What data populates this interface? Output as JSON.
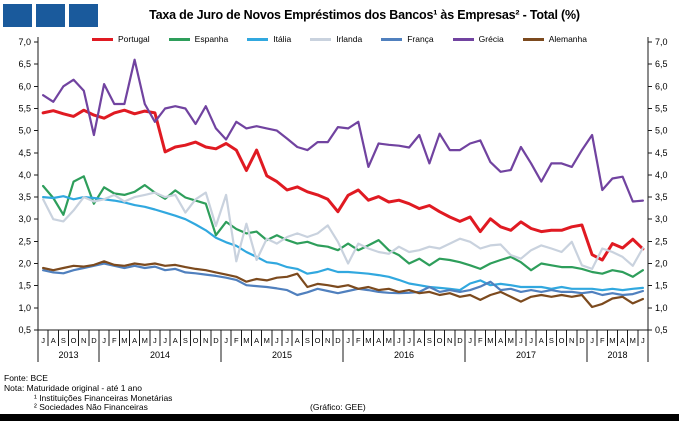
{
  "header": {
    "title": "Taxa de Juro de Novos Empréstimos dos Bancos¹ às Empresas² - Total (%)",
    "logo_color": "#1A5A9C",
    "logo_square_count": 3
  },
  "chart_data": {
    "type": "line",
    "title": "Taxa de Juro de Novos Empréstimos dos Bancos¹ às Empresas² - Total (%)",
    "unit": "%",
    "grid": "off",
    "legend_position": "top",
    "y_axis": {
      "min": 0.5,
      "max": 7.0,
      "step": 0.5,
      "sides": "both",
      "tick_format": "decimal-comma"
    },
    "x_axis": {
      "month_labels": [
        "J",
        "A",
        "S",
        "O",
        "N",
        "D",
        "J",
        "F",
        "M",
        "A",
        "M",
        "J",
        "J",
        "A",
        "S",
        "O",
        "N",
        "D",
        "J",
        "F",
        "M",
        "A",
        "M",
        "J",
        "J",
        "A",
        "S",
        "O",
        "N",
        "D",
        "J",
        "F",
        "M",
        "A",
        "M",
        "J",
        "J",
        "A",
        "S",
        "O",
        "N",
        "D",
        "J",
        "F",
        "M",
        "A",
        "M",
        "J",
        "J",
        "A",
        "S",
        "O",
        "N",
        "D",
        "J",
        "F",
        "M",
        "A",
        "M",
        "J"
      ],
      "years": [
        {
          "label": "2013",
          "months": 6
        },
        {
          "label": "2014",
          "months": 12
        },
        {
          "label": "2015",
          "months": 12
        },
        {
          "label": "2016",
          "months": 12
        },
        {
          "label": "2017",
          "months": 12
        },
        {
          "label": "2018",
          "months": 6
        }
      ]
    },
    "series": [
      {
        "name": "Portugal",
        "color": "#E01A22",
        "width": 3,
        "values": [
          5.4,
          5.45,
          5.38,
          5.32,
          5.46,
          5.35,
          5.28,
          5.4,
          5.46,
          5.38,
          5.44,
          5.4,
          4.52,
          4.63,
          4.67,
          4.74,
          4.63,
          4.59,
          4.71,
          4.56,
          4.1,
          4.56,
          3.98,
          3.85,
          3.66,
          3.73,
          3.62,
          3.55,
          3.45,
          3.17,
          3.54,
          3.66,
          3.43,
          3.51,
          3.39,
          3.43,
          3.35,
          3.24,
          3.31,
          3.17,
          3.05,
          2.95,
          3.05,
          2.72,
          3.01,
          2.83,
          2.75,
          2.94,
          2.79,
          2.72,
          2.75,
          2.75,
          2.83,
          2.87,
          2.2,
          2.08,
          2.45,
          2.35,
          2.55,
          2.33
        ]
      },
      {
        "name": "Espanha",
        "color": "#2E9E5B",
        "width": 2.2,
        "values": [
          3.75,
          3.48,
          3.1,
          3.85,
          3.97,
          3.35,
          3.72,
          3.58,
          3.55,
          3.62,
          3.77,
          3.6,
          3.46,
          3.65,
          3.49,
          3.42,
          3.35,
          2.64,
          2.94,
          2.78,
          2.68,
          2.72,
          2.53,
          2.64,
          2.53,
          2.45,
          2.49,
          2.41,
          2.38,
          2.3,
          2.45,
          2.3,
          2.41,
          2.53,
          2.3,
          2.19,
          2.0,
          2.11,
          1.96,
          2.11,
          2.08,
          2.03,
          1.96,
          1.88,
          2.0,
          2.08,
          2.15,
          2.03,
          1.85,
          2.0,
          1.96,
          1.92,
          1.92,
          1.88,
          1.81,
          1.77,
          1.85,
          1.81,
          1.7,
          1.85
        ]
      },
      {
        "name": "Itália",
        "color": "#31A8DF",
        "width": 2.2,
        "values": [
          3.5,
          3.48,
          3.52,
          3.45,
          3.5,
          3.48,
          3.45,
          3.42,
          3.38,
          3.32,
          3.28,
          3.22,
          3.15,
          3.08,
          3.0,
          2.88,
          2.75,
          2.58,
          2.48,
          2.4,
          2.26,
          2.15,
          2.03,
          2.0,
          1.92,
          1.88,
          1.77,
          1.81,
          1.88,
          1.81,
          1.81,
          1.79,
          1.77,
          1.74,
          1.7,
          1.63,
          1.55,
          1.51,
          1.47,
          1.45,
          1.43,
          1.4,
          1.55,
          1.62,
          1.51,
          1.54,
          1.51,
          1.47,
          1.47,
          1.47,
          1.43,
          1.47,
          1.43,
          1.43,
          1.43,
          1.4,
          1.43,
          1.4,
          1.43,
          1.45
        ]
      },
      {
        "name": "Irlanda",
        "color": "#C9D2DE",
        "width": 2.2,
        "values": [
          3.45,
          3.0,
          2.95,
          3.2,
          3.5,
          3.4,
          3.45,
          3.55,
          3.4,
          3.5,
          3.55,
          3.6,
          3.5,
          3.55,
          3.15,
          3.45,
          3.6,
          2.85,
          3.55,
          2.05,
          2.9,
          2.08,
          2.56,
          2.45,
          2.6,
          2.68,
          2.6,
          2.68,
          2.86,
          2.49,
          2.0,
          2.45,
          2.34,
          2.26,
          2.22,
          2.38,
          2.26,
          2.3,
          2.38,
          2.34,
          2.45,
          2.56,
          2.49,
          2.34,
          2.41,
          2.43,
          2.19,
          2.11,
          2.3,
          2.41,
          2.34,
          2.26,
          2.49,
          1.96,
          1.88,
          2.34,
          2.26,
          2.15,
          1.95,
          2.35
        ]
      },
      {
        "name": "França",
        "color": "#5080BE",
        "width": 2.2,
        "values": [
          1.85,
          1.8,
          1.78,
          1.85,
          1.9,
          1.95,
          2.0,
          1.95,
          1.9,
          1.95,
          1.9,
          1.93,
          1.85,
          1.88,
          1.8,
          1.78,
          1.75,
          1.72,
          1.68,
          1.63,
          1.51,
          1.49,
          1.47,
          1.44,
          1.4,
          1.29,
          1.35,
          1.43,
          1.38,
          1.33,
          1.38,
          1.43,
          1.4,
          1.36,
          1.34,
          1.33,
          1.34,
          1.36,
          1.47,
          1.36,
          1.4,
          1.36,
          1.4,
          1.48,
          1.59,
          1.4,
          1.43,
          1.36,
          1.4,
          1.36,
          1.4,
          1.36,
          1.36,
          1.33,
          1.36,
          1.29,
          1.33,
          1.29,
          1.31,
          1.38
        ]
      },
      {
        "name": "Grécia",
        "color": "#7143A0",
        "width": 2.2,
        "values": [
          5.8,
          5.65,
          6.0,
          6.15,
          5.9,
          4.9,
          6.05,
          5.6,
          5.6,
          6.6,
          5.6,
          5.2,
          5.5,
          5.55,
          5.5,
          5.15,
          5.55,
          5.05,
          4.8,
          5.2,
          5.05,
          5.1,
          5.05,
          5.0,
          4.82,
          4.63,
          4.56,
          4.74,
          4.74,
          5.08,
          5.05,
          5.2,
          4.18,
          4.71,
          4.68,
          4.66,
          4.62,
          4.9,
          4.26,
          4.93,
          4.56,
          4.56,
          4.71,
          4.78,
          4.29,
          4.07,
          4.11,
          4.63,
          4.26,
          3.85,
          4.26,
          4.26,
          4.18,
          4.56,
          4.9,
          3.66,
          3.92,
          3.96,
          3.4,
          3.42
        ]
      },
      {
        "name": "Alemanha",
        "color": "#7C4A1E",
        "width": 2.2,
        "values": [
          1.9,
          1.85,
          1.9,
          1.95,
          1.93,
          1.97,
          2.05,
          1.97,
          1.95,
          2.0,
          1.97,
          2.0,
          1.95,
          1.97,
          1.92,
          1.88,
          1.85,
          1.8,
          1.75,
          1.7,
          1.59,
          1.65,
          1.62,
          1.68,
          1.7,
          1.77,
          1.47,
          1.54,
          1.51,
          1.47,
          1.51,
          1.43,
          1.47,
          1.4,
          1.43,
          1.36,
          1.4,
          1.33,
          1.36,
          1.29,
          1.33,
          1.25,
          1.29,
          1.18,
          1.29,
          1.36,
          1.25,
          1.14,
          1.25,
          1.29,
          1.25,
          1.29,
          1.25,
          1.29,
          1.02,
          1.09,
          1.21,
          1.25,
          1.1,
          1.2
        ]
      }
    ]
  },
  "footer": {
    "source": "Fonte: BCE",
    "note": "Nota: Maturidade original - até 1 ano",
    "note1": "¹ Instituições Financeiras Monetárias",
    "note2": "² Sociedades Não Financeiras",
    "credit": "(Gráfico: GEE)"
  }
}
